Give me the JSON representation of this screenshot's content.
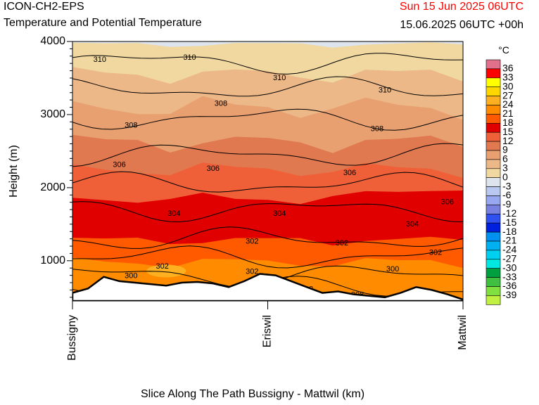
{
  "header": {
    "model": "ICON-CH2-EPS",
    "subtitle": "Temperature and Potential Temperature",
    "valid_time": "Sun 15 Jun 2025 06UTC",
    "init_time": "15.06.2025 06UTC +00h"
  },
  "colors": {
    "valid_time_text": "#ff0000",
    "terrain": "#ffffff",
    "isentrope": "#000000"
  },
  "chart_data": {
    "type": "contour-cross-section",
    "xlabel": "Slice Along The Path Bussigny - Mattwil (km)",
    "ylabel": "Height (m)",
    "ylim": [
      450,
      4000
    ],
    "y_ticks": [
      "1000",
      "2000",
      "3000",
      "4000"
    ],
    "x_ticks": [
      "Bussigny",
      "Eriswil",
      "Mattwil"
    ],
    "legend": {
      "unit": "°C",
      "position": "right",
      "levels": [
        "36",
        "33",
        "30",
        "27",
        "24",
        "21",
        "18",
        "15",
        "12",
        "9",
        "6",
        "3",
        "0",
        "-3",
        "-6",
        "-9",
        "-12",
        "-15",
        "-18",
        "-21",
        "-24",
        "-27",
        "-30",
        "-33",
        "-36",
        "-39"
      ],
      "colors": [
        "#e0708c",
        "#ff0000",
        "#ffff00",
        "#ffd700",
        "#ffb020",
        "#ff8c00",
        "#ff5a00",
        "#e00000",
        "#f06038",
        "#e07850",
        "#e8a070",
        "#ecb888",
        "#f0d8a0",
        "#dde4ee",
        "#b8c8f0",
        "#98a8f0",
        "#7880e0",
        "#3050f0",
        "#0020e0",
        "#0090f0",
        "#00b0f0",
        "#00d0f0",
        "#00e8e0",
        "#00a040",
        "#40c040",
        "#80e040",
        "#c0f040"
      ]
    },
    "temperature_bands": [
      {
        "range": "0 to 3 °C",
        "color": "#f0d8a0"
      },
      {
        "range": "3 to 6 °C",
        "color": "#ecb888"
      },
      {
        "range": "6 to 9 °C",
        "color": "#e8a070"
      },
      {
        "range": "9 to 12 °C",
        "color": "#e07850"
      },
      {
        "range": "12 to 15 °C",
        "color": "#f06038"
      },
      {
        "range": "15 to 18 °C",
        "color": "#e00000"
      },
      {
        "range": "18 to 21 °C",
        "color": "#ff5a00"
      },
      {
        "range": "21 to 24 °C",
        "color": "#ff8c00"
      }
    ],
    "isentrope_labels": [
      {
        "label": "310",
        "x_frac": 0.07,
        "y": 3750
      },
      {
        "label": "310",
        "x_frac": 0.3,
        "y": 3780
      },
      {
        "label": "310",
        "x_frac": 0.53,
        "y": 3500
      },
      {
        "label": "310",
        "x_frac": 0.8,
        "y": 3330
      },
      {
        "label": "308",
        "x_frac": 0.38,
        "y": 3150
      },
      {
        "label": "308",
        "x_frac": 0.15,
        "y": 2850
      },
      {
        "label": "308",
        "x_frac": 0.78,
        "y": 2800
      },
      {
        "label": "306",
        "x_frac": 0.12,
        "y": 2310
      },
      {
        "label": "306",
        "x_frac": 0.36,
        "y": 2260
      },
      {
        "label": "306",
        "x_frac": 0.71,
        "y": 2200
      },
      {
        "label": "306",
        "x_frac": 0.96,
        "y": 1800
      },
      {
        "label": "304",
        "x_frac": 0.26,
        "y": 1640
      },
      {
        "label": "304",
        "x_frac": 0.53,
        "y": 1640
      },
      {
        "label": "304",
        "x_frac": 0.87,
        "y": 1500
      },
      {
        "label": "302",
        "x_frac": 0.46,
        "y": 1260
      },
      {
        "label": "302",
        "x_frac": 0.69,
        "y": 1240
      },
      {
        "label": "302",
        "x_frac": 0.23,
        "y": 920
      },
      {
        "label": "302",
        "x_frac": 0.93,
        "y": 1110
      },
      {
        "label": "302",
        "x_frac": 0.46,
        "y": 850
      },
      {
        "label": "300",
        "x_frac": 0.15,
        "y": 790
      },
      {
        "label": "300",
        "x_frac": 0.82,
        "y": 880
      },
      {
        "label": "298",
        "x_frac": 0.6,
        "y": 610
      },
      {
        "label": "298",
        "x_frac": 0.73,
        "y": 530
      }
    ],
    "terrain_height_m": [
      560,
      620,
      780,
      720,
      700,
      680,
      660,
      700,
      710,
      690,
      640,
      720,
      820,
      800,
      720,
      640,
      560,
      580,
      540,
      520,
      500,
      560,
      640,
      600,
      540,
      470
    ]
  }
}
